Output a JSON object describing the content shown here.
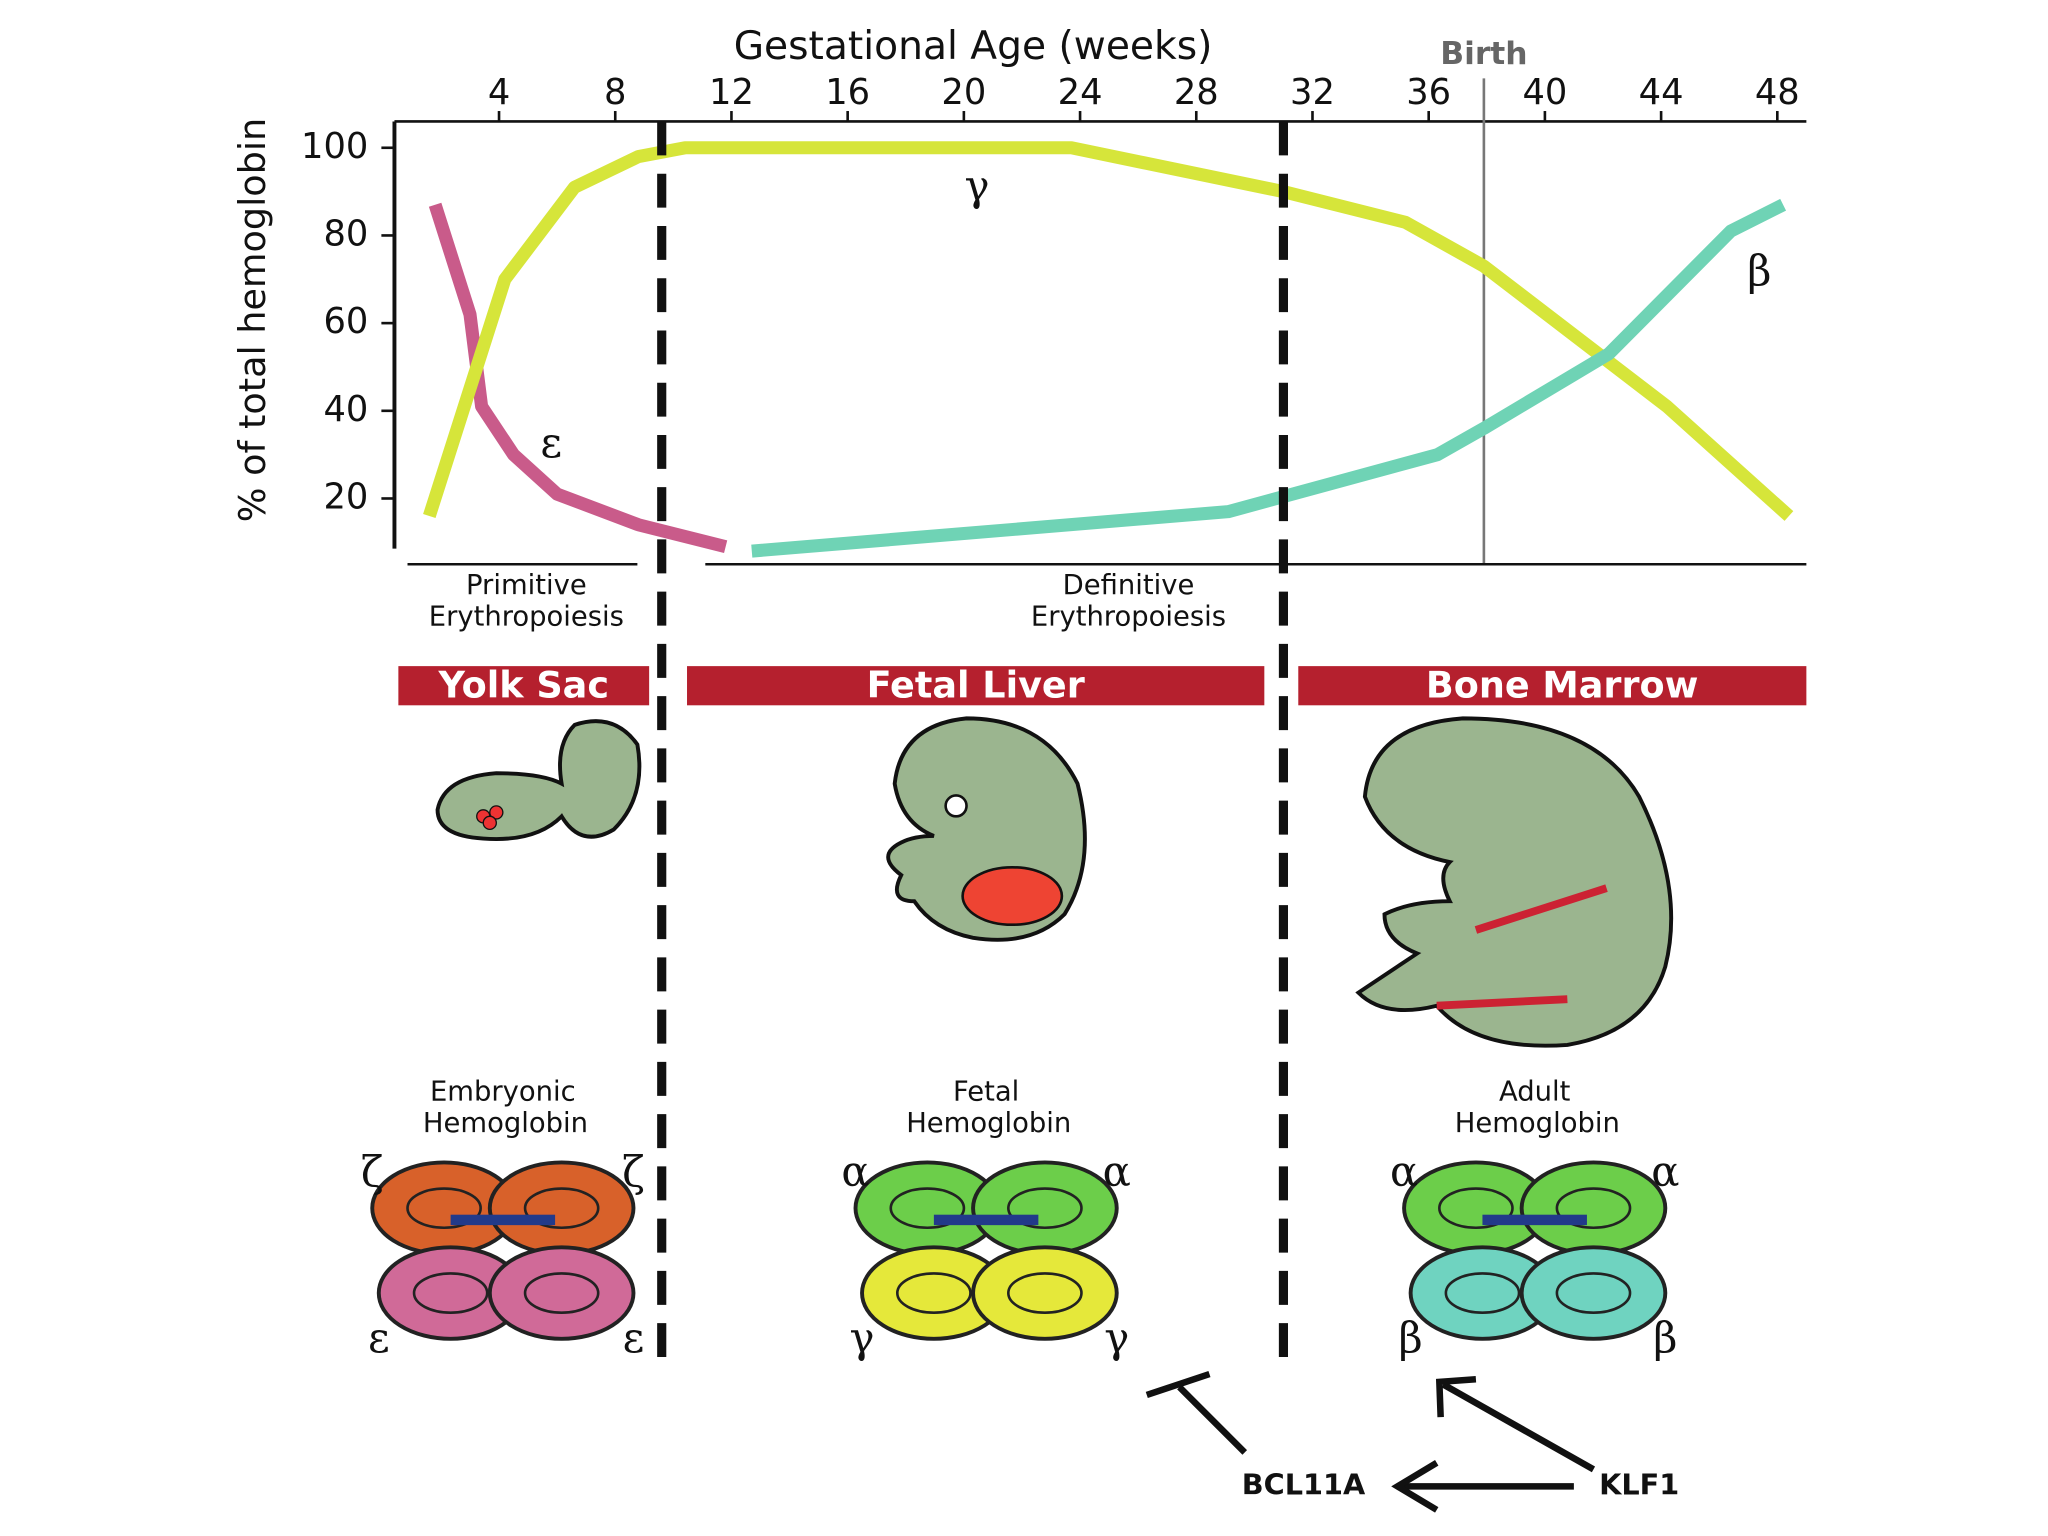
{
  "chart_data": {
    "type": "line",
    "title": "Gestational Age (weeks)",
    "y_label": "% of total hemoglobin",
    "xlim": [
      0.4,
      49
    ],
    "xticks": [
      4,
      8,
      12,
      16,
      20,
      24,
      28,
      32,
      36,
      40,
      44,
      48
    ],
    "ylim": [
      5,
      106
    ],
    "yticks": [
      20,
      40,
      60,
      80,
      100
    ],
    "annotations": [
      {
        "text": "Birth",
        "x": 37.9
      }
    ],
    "phase_boundaries": [
      9.6,
      31
    ],
    "series": [
      {
        "name": "ε",
        "color": "#c95b8a",
        "x": [
          1.8,
          3,
          3.4,
          4.5,
          6,
          8.8,
          11.8
        ],
        "values": [
          87,
          62,
          41,
          30,
          21,
          14,
          9
        ]
      },
      {
        "name": "γ",
        "color": "#d6e53a",
        "x": [
          1.6,
          4.2,
          6.6,
          8.8,
          10.4,
          23.7,
          31,
          35.2,
          37.9,
          44.2,
          48.4
        ],
        "values": [
          16,
          70,
          91,
          98,
          100,
          100,
          90,
          83,
          73,
          41,
          16
        ]
      },
      {
        "name": "β",
        "color": "#6fd3b5",
        "x": [
          12.7,
          29.1,
          36.3,
          37.9,
          42.2,
          46.4,
          48.2
        ],
        "values": [
          8,
          17,
          30,
          36,
          53,
          81,
          87
        ]
      }
    ]
  },
  "phases": [
    [
      "Primitive",
      "Erythropoiesis"
    ],
    [
      "Definitive",
      "Erythropoiesis"
    ]
  ],
  "sites": [
    "Yolk Sac",
    "Fetal Liver",
    "Bone Marrow"
  ],
  "hemoglobins": [
    {
      "label": [
        "Embryonic",
        "Hemoglobin"
      ],
      "subunits": [
        "ζ",
        "ζ",
        "ε",
        "ε"
      ]
    },
    {
      "label": [
        "Fetal",
        "Hemoglobin"
      ],
      "subunits": [
        "α",
        "α",
        "γ",
        "γ"
      ]
    },
    {
      "label": [
        "Adult",
        "Hemoglobin"
      ],
      "subunits": [
        "α",
        "α",
        "β",
        "β"
      ]
    }
  ],
  "regulators": [
    "BCL11A",
    "KLF1"
  ]
}
